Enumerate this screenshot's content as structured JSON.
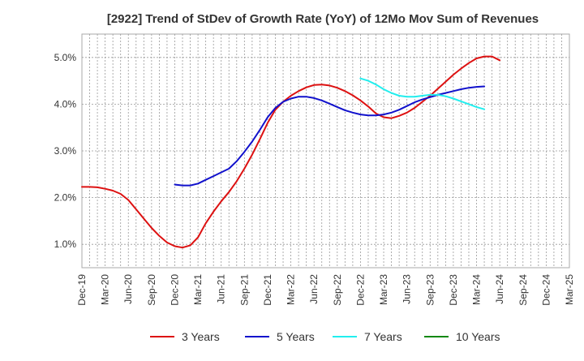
{
  "chart_data": {
    "type": "line",
    "title": "[2922]  Trend of StDev of Growth Rate (YoY) of 12Mo Mov Sum of Revenues",
    "xlabel": "",
    "ylabel": "",
    "x_ticks": [
      "Dec-19",
      "Mar-20",
      "Jun-20",
      "Sep-20",
      "Dec-20",
      "Mar-21",
      "Jun-21",
      "Sep-21",
      "Dec-21",
      "Mar-22",
      "Jun-22",
      "Sep-22",
      "Dec-22",
      "Mar-23",
      "Jun-23",
      "Sep-23",
      "Dec-23",
      "Mar-24",
      "Jun-24",
      "Sep-24",
      "Dec-24",
      "Mar-25"
    ],
    "y_ticks": [
      1.0,
      2.0,
      3.0,
      4.0,
      5.0
    ],
    "y_tick_labels": [
      "1.0%",
      "2.0%",
      "3.0%",
      "4.0%",
      "5.0%"
    ],
    "ylim": [
      0.5,
      5.5
    ],
    "grid": true,
    "legend_position": "bottom",
    "series": [
      {
        "name": "3 Years",
        "color": "#dd1111",
        "start_index": 0,
        "values": [
          2.23,
          2.23,
          2.22,
          2.19,
          2.15,
          2.08,
          1.95,
          1.75,
          1.55,
          1.35,
          1.18,
          1.04,
          0.96,
          0.93,
          0.98,
          1.15,
          1.45,
          1.7,
          1.92,
          2.12,
          2.35,
          2.62,
          2.92,
          3.25,
          3.6,
          3.88,
          4.05,
          4.18,
          4.28,
          4.36,
          4.41,
          4.42,
          4.4,
          4.35,
          4.28,
          4.19,
          4.08,
          3.95,
          3.8,
          3.72,
          3.7,
          3.75,
          3.82,
          3.92,
          4.05,
          4.18,
          4.33,
          4.48,
          4.63,
          4.76,
          4.88,
          4.98,
          5.02,
          5.02,
          4.94
        ]
      },
      {
        "name": "5 Years",
        "color": "#1111cc",
        "start_index": 12,
        "values": [
          2.28,
          2.26,
          2.26,
          2.3,
          2.38,
          2.46,
          2.54,
          2.62,
          2.78,
          2.98,
          3.2,
          3.45,
          3.72,
          3.92,
          4.05,
          4.12,
          4.16,
          4.16,
          4.13,
          4.08,
          4.01,
          3.94,
          3.87,
          3.82,
          3.78,
          3.76,
          3.76,
          3.78,
          3.82,
          3.88,
          3.96,
          4.04,
          4.1,
          4.15,
          4.2,
          4.24,
          4.28,
          4.32,
          4.35,
          4.37,
          4.38
        ]
      },
      {
        "name": "7 Years",
        "color": "#22eeee",
        "start_index": 36,
        "values": [
          4.55,
          4.5,
          4.42,
          4.32,
          4.24,
          4.18,
          4.16,
          4.16,
          4.18,
          4.2,
          4.2,
          4.17,
          4.12,
          4.06,
          4.0,
          3.94,
          3.89
        ]
      },
      {
        "name": "10 Years",
        "color": "#118811",
        "start_index": 0,
        "values": []
      }
    ]
  }
}
